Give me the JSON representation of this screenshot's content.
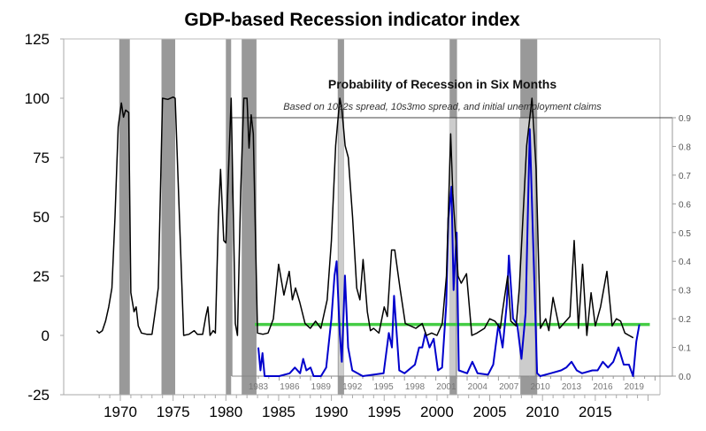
{
  "chart_data": [
    {
      "type": "line",
      "title": "GDP-based Recession indicator index",
      "ylim": [
        -25,
        125
      ],
      "yticks": [
        "125",
        "100",
        "75",
        "50",
        "25",
        "0",
        "-25"
      ],
      "ytick_values": [
        125,
        100,
        75,
        50,
        25,
        0,
        -25
      ],
      "xticks": [
        "1970",
        "1975",
        "1980",
        "1985",
        "1990",
        "1995",
        "2000",
        "2005",
        "2010",
        "2015"
      ],
      "xtick_values": [
        1970,
        1975,
        1980,
        1985,
        1990,
        1995,
        2000,
        2005,
        2010,
        2015
      ],
      "xlim": [
        1965,
        2022
      ],
      "recessions": [
        [
          1969.9,
          1970.9
        ],
        [
          1973.9,
          1975.2
        ],
        [
          1980.0,
          1980.5
        ],
        [
          1981.5,
          1982.9
        ],
        [
          1990.6,
          1991.2
        ],
        [
          2001.2,
          2001.9
        ],
        [
          2007.9,
          2009.5
        ]
      ],
      "series": [
        {
          "color": "#000000",
          "points": [
            [
              1967.75,
              2
            ],
            [
              1968,
              1
            ],
            [
              1968.3,
              2
            ],
            [
              1968.6,
              6
            ],
            [
              1968.9,
              12
            ],
            [
              1969.2,
              20
            ],
            [
              1969.5,
              50
            ],
            [
              1969.8,
              88
            ],
            [
              1970.1,
              98
            ],
            [
              1970.3,
              92
            ],
            [
              1970.5,
              95
            ],
            [
              1970.8,
              94
            ],
            [
              1971,
              18
            ],
            [
              1971.3,
              10
            ],
            [
              1971.5,
              12
            ],
            [
              1971.7,
              4
            ],
            [
              1972,
              1
            ],
            [
              1972.5,
              0.5
            ],
            [
              1973,
              0.5
            ],
            [
              1973.3,
              10
            ],
            [
              1973.6,
              20
            ],
            [
              1974,
              100
            ],
            [
              1974.5,
              99.5
            ],
            [
              1975,
              100.5
            ],
            [
              1975.2,
              100
            ],
            [
              1976,
              0
            ],
            [
              1976.5,
              0.5
            ],
            [
              1977,
              2
            ],
            [
              1977.3,
              0.5
            ],
            [
              1977.8,
              0.5
            ],
            [
              1978.1,
              8
            ],
            [
              1978.3,
              12
            ],
            [
              1978.5,
              0
            ],
            [
              1978.8,
              2
            ],
            [
              1979,
              1
            ],
            [
              1979.3,
              50
            ],
            [
              1979.5,
              70
            ],
            [
              1979.8,
              40
            ],
            [
              1980,
              39
            ],
            [
              1980.5,
              100
            ],
            [
              1980.9,
              5
            ],
            [
              1981.1,
              0
            ],
            [
              1981.4,
              60
            ],
            [
              1981.7,
              100
            ],
            [
              1982,
              100
            ],
            [
              1982.2,
              79
            ],
            [
              1982.4,
              93
            ],
            [
              1982.6,
              85
            ],
            [
              1983,
              1
            ],
            [
              1983.5,
              0.5
            ],
            [
              1984,
              1
            ],
            [
              1984.5,
              7
            ],
            [
              1985,
              30
            ],
            [
              1985.5,
              17
            ],
            [
              1986,
              27
            ],
            [
              1986.3,
              15
            ],
            [
              1986.6,
              20
            ],
            [
              1987,
              14
            ],
            [
              1987.5,
              5
            ],
            [
              1988,
              3
            ],
            [
              1988.5,
              6
            ],
            [
              1989,
              3
            ],
            [
              1989.6,
              15
            ],
            [
              1990,
              40
            ],
            [
              1990.4,
              80
            ],
            [
              1990.8,
              100
            ],
            [
              1991,
              95
            ],
            [
              1991.3,
              80
            ],
            [
              1991.6,
              75
            ],
            [
              1992,
              50
            ],
            [
              1992.4,
              20
            ],
            [
              1992.7,
              15
            ],
            [
              1993,
              32
            ],
            [
              1993.4,
              10
            ],
            [
              1993.7,
              2
            ],
            [
              1994,
              3
            ],
            [
              1994.5,
              1
            ],
            [
              1995,
              12
            ],
            [
              1995.3,
              8
            ],
            [
              1995.7,
              36
            ],
            [
              1996,
              36
            ],
            [
              1996.5,
              20
            ],
            [
              1997,
              5
            ],
            [
              1998,
              3
            ],
            [
              1998.6,
              5
            ],
            [
              1999,
              0
            ],
            [
              1999.5,
              1
            ],
            [
              2000,
              0
            ],
            [
              2000.5,
              5
            ],
            [
              2000.9,
              25
            ],
            [
              2001.3,
              85
            ],
            [
              2001.5,
              60
            ],
            [
              2002,
              25
            ],
            [
              2002.3,
              22
            ],
            [
              2002.8,
              26
            ],
            [
              2003.3,
              0
            ],
            [
              2003.8,
              1
            ],
            [
              2004.5,
              3
            ],
            [
              2005,
              7
            ],
            [
              2005.5,
              6
            ],
            [
              2006,
              3
            ],
            [
              2006.2,
              10
            ],
            [
              2006.7,
              25
            ],
            [
              2007,
              6
            ],
            [
              2007.5,
              4
            ],
            [
              2007.8,
              20
            ],
            [
              2008.5,
              80
            ],
            [
              2009,
              100
            ],
            [
              2009.4,
              70
            ],
            [
              2009.8,
              3
            ],
            [
              2010.3,
              7
            ],
            [
              2010.6,
              2
            ],
            [
              2011,
              16
            ],
            [
              2011.6,
              3
            ],
            [
              2012,
              5
            ],
            [
              2012.6,
              8
            ],
            [
              2013,
              40
            ],
            [
              2013.4,
              3
            ],
            [
              2013.8,
              30
            ],
            [
              2014.2,
              0
            ],
            [
              2014.6,
              18
            ],
            [
              2015,
              4
            ],
            [
              2015.5,
              12
            ],
            [
              2016.1,
              27
            ],
            [
              2016.6,
              4
            ],
            [
              2017,
              7
            ],
            [
              2017.4,
              6
            ],
            [
              2017.8,
              1
            ],
            [
              2018.2,
              0
            ],
            [
              2018.6,
              -1
            ]
          ]
        }
      ]
    },
    {
      "type": "line",
      "title": "Probability of Recession in Six Months",
      "subtitle": "Based on 10s2s spread, 10s3mo spread, and initial unemployment claims",
      "ylim": [
        0,
        0.9
      ],
      "yticks": [
        "0.0",
        "0.1",
        "0.2",
        "0.3",
        "0.4",
        "0.5",
        "0.6",
        "0.7",
        "0.8",
        "0.9"
      ],
      "ytick_values": [
        0,
        0.1,
        0.2,
        0.3,
        0.4,
        0.5,
        0.6,
        0.7,
        0.8,
        0.9
      ],
      "yaxis_side": "right",
      "xticks": [
        "1983",
        "1986",
        "1989",
        "1992",
        "1995",
        "1998",
        "2001",
        "2004",
        "2007",
        "2010",
        "2013",
        "2016",
        "2019"
      ],
      "xtick_values": [
        1983,
        1986,
        1989,
        1992,
        1995,
        1998,
        2001,
        2004,
        2007,
        2010,
        2013,
        2016,
        2019
      ],
      "recessions": [
        [
          1990.6,
          1991.2
        ],
        [
          2001.2,
          2001.9
        ],
        [
          2007.9,
          2009.5
        ]
      ],
      "threshold": {
        "value": 0.18,
        "color": "#44cc44",
        "x": [
          1983,
          2020.5
        ]
      },
      "series": [
        {
          "color": "#0000cc",
          "points": [
            [
              1983,
              0.1
            ],
            [
              1983.2,
              0.02
            ],
            [
              1983.4,
              0.08
            ],
            [
              1983.6,
              0
            ],
            [
              1985,
              0
            ],
            [
              1986,
              0.01
            ],
            [
              1986.5,
              0.03
            ],
            [
              1987,
              0.01
            ],
            [
              1987.3,
              0.06
            ],
            [
              1987.6,
              0.02
            ],
            [
              1988,
              0.03
            ],
            [
              1988.3,
              0
            ],
            [
              1989,
              0
            ],
            [
              1989.5,
              0.03
            ],
            [
              1990,
              0.2
            ],
            [
              1990.3,
              0.35
            ],
            [
              1990.5,
              0.4
            ],
            [
              1990.8,
              0.15
            ],
            [
              1991,
              0.05
            ],
            [
              1991.3,
              0.35
            ],
            [
              1991.6,
              0.1
            ],
            [
              1992,
              0.02
            ],
            [
              1993,
              0
            ],
            [
              1994,
              0.005
            ],
            [
              1995,
              0.01
            ],
            [
              1995.5,
              0.15
            ],
            [
              1995.8,
              0.1
            ],
            [
              1996,
              0.28
            ],
            [
              1996.5,
              0.02
            ],
            [
              1997,
              0.01
            ],
            [
              1998,
              0.04
            ],
            [
              1998.4,
              0.1
            ],
            [
              1998.7,
              0.1
            ],
            [
              1999,
              0.15
            ],
            [
              1999.4,
              0.1
            ],
            [
              1999.8,
              0.13
            ],
            [
              2000.2,
              0.02
            ],
            [
              2000.6,
              0.03
            ],
            [
              2001,
              0.25
            ],
            [
              2001.2,
              0.55
            ],
            [
              2001.5,
              0.66
            ],
            [
              2001.7,
              0.3
            ],
            [
              2002,
              0.5
            ],
            [
              2002.2,
              0.02
            ],
            [
              2003,
              0.01
            ],
            [
              2003.5,
              0.05
            ],
            [
              2004,
              0.01
            ],
            [
              2005,
              0.005
            ],
            [
              2005.5,
              0.04
            ],
            [
              2006,
              0.18
            ],
            [
              2006.4,
              0.1
            ],
            [
              2006.8,
              0.25
            ],
            [
              2007,
              0.42
            ],
            [
              2007.4,
              0.2
            ],
            [
              2007.8,
              0.18
            ],
            [
              2008.2,
              0.06
            ],
            [
              2008.6,
              0.22
            ],
            [
              2009,
              0.86
            ],
            [
              2009.3,
              0.5
            ],
            [
              2009.7,
              0.01
            ],
            [
              2010,
              0
            ],
            [
              2011,
              0.01
            ],
            [
              2012,
              0.02
            ],
            [
              2012.5,
              0.03
            ],
            [
              2013,
              0.05
            ],
            [
              2013.5,
              0.02
            ],
            [
              2014,
              0.01
            ],
            [
              2015,
              0.02
            ],
            [
              2015.5,
              0.02
            ],
            [
              2016,
              0.05
            ],
            [
              2016.5,
              0.03
            ],
            [
              2017,
              0.05
            ],
            [
              2017.5,
              0.1
            ],
            [
              2018,
              0.04
            ],
            [
              2018.5,
              0.04
            ],
            [
              2018.9,
              0
            ],
            [
              2019.2,
              0.12
            ],
            [
              2019.5,
              0.18
            ]
          ]
        }
      ]
    }
  ],
  "colors": {
    "recession_main": "#999999",
    "recession_inset": "#cccccc",
    "gdp_line": "#000000",
    "probability_line": "#0000cc",
    "threshold_line": "#44cc44"
  }
}
